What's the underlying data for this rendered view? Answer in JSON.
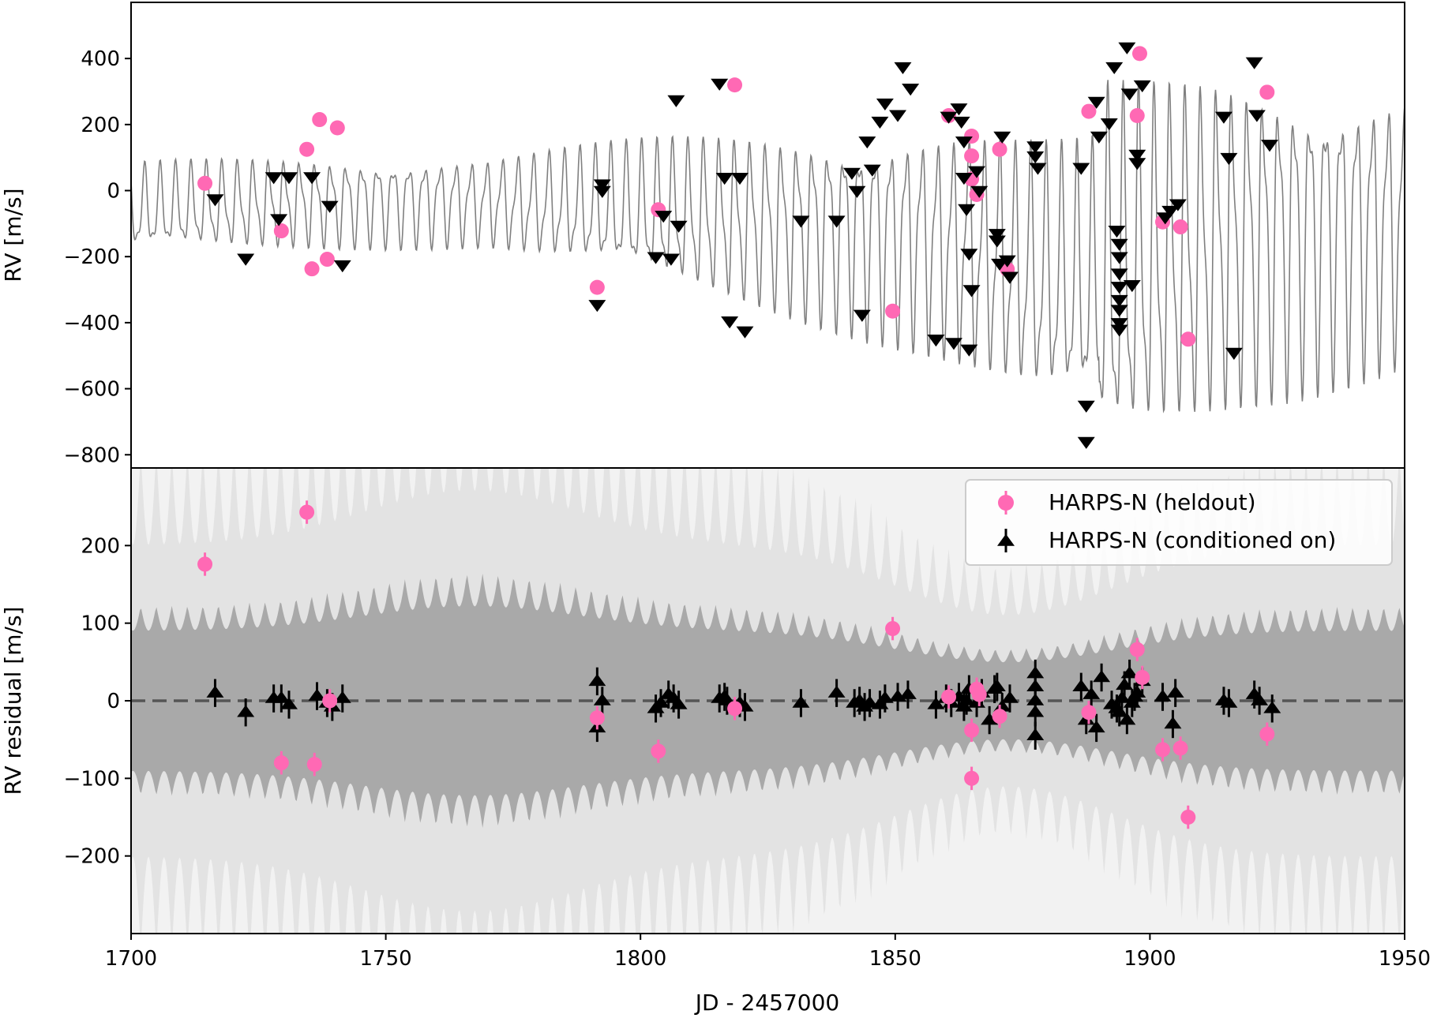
{
  "colors": {
    "heldout": "#ff69b4",
    "conditioned": "#000000",
    "model_line": "#808080",
    "band_outer": "#e3e3e3",
    "band_inner": "#a9a9a9",
    "zero_line": "#555555"
  },
  "chart_data": [
    {
      "type": "scatter",
      "panel": "top",
      "ylabel": "RV [m/s]",
      "xlim": [
        1700,
        1950
      ],
      "ylim": [
        -840,
        570
      ],
      "yticks": [
        400,
        200,
        0,
        -200,
        -400,
        -600,
        -800
      ],
      "ytick_labels": [
        "400",
        "200",
        "0",
        "−200",
        "−400",
        "−600",
        "−800"
      ],
      "model_line": {
        "description": "oscillating RV model curve",
        "short_period_days": 3.05,
        "short_amplitude_range": [
          70,
          420
        ],
        "long_trend": "slow rise then oscillation growth toward 1890, decline after"
      },
      "series": [
        {
          "name": "HARPS-N (heldout)",
          "marker": "circle",
          "points": [
            [
              1714.5,
              22
            ],
            [
              1729.5,
              -122
            ],
            [
              1734.5,
              125
            ],
            [
              1735.5,
              -237
            ],
            [
              1737,
              215
            ],
            [
              1738.5,
              -208
            ],
            [
              1740.5,
              190
            ],
            [
              1791.5,
              -293
            ],
            [
              1803.5,
              -58
            ],
            [
              1818.5,
              320
            ],
            [
              1849.5,
              -365
            ],
            [
              1860.5,
              227
            ],
            [
              1865,
              165
            ],
            [
              1865,
              105
            ],
            [
              1865,
              35
            ],
            [
              1866,
              -12
            ],
            [
              1870.5,
              125
            ],
            [
              1872,
              -238
            ],
            [
              1888,
              240
            ],
            [
              1897.5,
              227
            ],
            [
              1898,
              415
            ],
            [
              1902.5,
              -95
            ],
            [
              1906,
              -110
            ],
            [
              1907.5,
              -450
            ],
            [
              1923,
              298
            ]
          ]
        },
        {
          "name": "HARPS-N (conditioned on)",
          "marker": "triangle-down",
          "points": [
            [
              1716.5,
              -25
            ],
            [
              1722.5,
              -205
            ],
            [
              1728,
              42
            ],
            [
              1729,
              -85
            ],
            [
              1731,
              42
            ],
            [
              1735.5,
              42
            ],
            [
              1739,
              -45
            ],
            [
              1741.5,
              -225
            ],
            [
              1791.5,
              -345
            ],
            [
              1792.5,
              20
            ],
            [
              1792.5,
              0
            ],
            [
              1803,
              -200
            ],
            [
              1804.5,
              -75
            ],
            [
              1806,
              -205
            ],
            [
              1807,
              275
            ],
            [
              1807.5,
              -105
            ],
            [
              1815.5,
              325
            ],
            [
              1816.5,
              40
            ],
            [
              1817.5,
              -395
            ],
            [
              1819.5,
              40
            ],
            [
              1820.5,
              -425
            ],
            [
              1831.5,
              -90
            ],
            [
              1838.5,
              -90
            ],
            [
              1841.5,
              55
            ],
            [
              1842.5,
              0
            ],
            [
              1843.5,
              -375
            ],
            [
              1844.5,
              150
            ],
            [
              1845.5,
              65
            ],
            [
              1847,
              210
            ],
            [
              1848,
              265
            ],
            [
              1850.5,
              230
            ],
            [
              1851.5,
              375
            ],
            [
              1853,
              310
            ],
            [
              1858,
              -450
            ],
            [
              1860.5,
              225
            ],
            [
              1861.5,
              -460
            ],
            [
              1862.5,
              250
            ],
            [
              1863,
              210
            ],
            [
              1863.5,
              150
            ],
            [
              1863.5,
              40
            ],
            [
              1864,
              -55
            ],
            [
              1864.5,
              -480
            ],
            [
              1864.5,
              -190
            ],
            [
              1865,
              -300
            ],
            [
              1866,
              60
            ],
            [
              1866.5,
              0
            ],
            [
              1870,
              -130
            ],
            [
              1870,
              -150
            ],
            [
              1870.5,
              -220
            ],
            [
              1871,
              165
            ],
            [
              1872,
              -210
            ],
            [
              1872.5,
              -260
            ],
            [
              1877.5,
              135
            ],
            [
              1877.5,
              105
            ],
            [
              1878,
              70
            ],
            [
              1886.5,
              70
            ],
            [
              1887.5,
              -650
            ],
            [
              1887.5,
              -760
            ],
            [
              1889.5,
              270
            ],
            [
              1890,
              165
            ],
            [
              1892,
              205
            ],
            [
              1893,
              375
            ],
            [
              1893.5,
              -120
            ],
            [
              1894,
              -160
            ],
            [
              1894,
              -200
            ],
            [
              1894,
              -250
            ],
            [
              1894,
              -290
            ],
            [
              1894,
              -330
            ],
            [
              1894,
              -360
            ],
            [
              1894,
              -400
            ],
            [
              1894,
              -420
            ],
            [
              1895.5,
              435
            ],
            [
              1896,
              295
            ],
            [
              1896.5,
              -285
            ],
            [
              1897.5,
              110
            ],
            [
              1897.5,
              85
            ],
            [
              1898.5,
              320
            ],
            [
              1903,
              -80
            ],
            [
              1904,
              -60
            ],
            [
              1905.5,
              -40
            ],
            [
              1914.5,
              225
            ],
            [
              1915.5,
              100
            ],
            [
              1916.5,
              -490
            ],
            [
              1920.5,
              390
            ],
            [
              1921,
              230
            ],
            [
              1923.5,
              140
            ]
          ]
        }
      ]
    },
    {
      "type": "scatter",
      "panel": "bottom",
      "xlabel": "JD - 2457000",
      "ylabel": "RV residual [m/s]",
      "xlim": [
        1700,
        1950
      ],
      "ylim": [
        -300,
        300
      ],
      "xticks": [
        1700,
        1750,
        1800,
        1850,
        1900,
        1950
      ],
      "xtick_labels": [
        "1700",
        "1750",
        "1800",
        "1850",
        "1900",
        "1950"
      ],
      "yticks": [
        200,
        100,
        0,
        -100,
        -200
      ],
      "ytick_labels": [
        "200",
        "100",
        "0",
        "−100",
        "−200"
      ],
      "zero_line": 0,
      "bands": {
        "inner_base_halfwidth": 90,
        "outer_base_halfwidth": 200,
        "description": "shaded 1-sigma (dark) and 2-sigma (light) predictive intervals with rapid oscillation"
      },
      "legend": {
        "position": "top-right",
        "entries": [
          "HARPS-N (heldout)",
          "HARPS-N (conditioned on)"
        ]
      },
      "series": [
        {
          "name": "HARPS-N (heldout)",
          "marker": "circle",
          "errorbar": 15,
          "points": [
            [
              1714.5,
              176
            ],
            [
              1729.5,
              -80
            ],
            [
              1734.5,
              243
            ],
            [
              1736,
              -82
            ],
            [
              1739,
              0
            ],
            [
              1791.5,
              -22
            ],
            [
              1803.5,
              -65
            ],
            [
              1818.5,
              -10
            ],
            [
              1849.5,
              93
            ],
            [
              1860.5,
              5
            ],
            [
              1865,
              -38
            ],
            [
              1865,
              -100
            ],
            [
              1866,
              15
            ],
            [
              1866.5,
              8
            ],
            [
              1870.5,
              -20
            ],
            [
              1888,
              -15
            ],
            [
              1897.5,
              66
            ],
            [
              1898.5,
              30
            ],
            [
              1902.5,
              -63
            ],
            [
              1906,
              -61
            ],
            [
              1907.5,
              -150
            ],
            [
              1923,
              -43
            ]
          ]
        },
        {
          "name": "HARPS-N (conditioned on)",
          "marker": "triangle-up",
          "errorbar": 18,
          "points": [
            [
              1716.5,
              10
            ],
            [
              1722.5,
              -15
            ],
            [
              1728,
              3
            ],
            [
              1729.5,
              3
            ],
            [
              1731,
              -5
            ],
            [
              1736.5,
              6
            ],
            [
              1738.5,
              -3
            ],
            [
              1739.5,
              -8
            ],
            [
              1741.5,
              3
            ],
            [
              1791.5,
              -35
            ],
            [
              1791.5,
              25
            ],
            [
              1792.5,
              0
            ],
            [
              1803,
              -10
            ],
            [
              1804,
              -3
            ],
            [
              1805.5,
              8
            ],
            [
              1806.5,
              3
            ],
            [
              1807.5,
              -5
            ],
            [
              1815.5,
              3
            ],
            [
              1816.5,
              5
            ],
            [
              1817,
              0
            ],
            [
              1819.5,
              -3
            ],
            [
              1820.5,
              -8
            ],
            [
              1831.5,
              -3
            ],
            [
              1838.5,
              10
            ],
            [
              1842,
              -3
            ],
            [
              1843,
              0
            ],
            [
              1844,
              -8
            ],
            [
              1845,
              -3
            ],
            [
              1847,
              -5
            ],
            [
              1848,
              3
            ],
            [
              1850.5,
              5
            ],
            [
              1852.5,
              8
            ],
            [
              1858,
              -5
            ],
            [
              1860,
              3
            ],
            [
              1861,
              -3
            ],
            [
              1862.5,
              5
            ],
            [
              1863.5,
              -8
            ],
            [
              1864,
              0
            ],
            [
              1864.5,
              15
            ],
            [
              1866,
              -3
            ],
            [
              1867,
              10
            ],
            [
              1868.5,
              -25
            ],
            [
              1869.5,
              15
            ],
            [
              1870,
              18
            ],
            [
              1871,
              -8
            ],
            [
              1872.5,
              3
            ],
            [
              1877.5,
              35
            ],
            [
              1877.5,
              18
            ],
            [
              1877.5,
              0
            ],
            [
              1877.5,
              -15
            ],
            [
              1877.5,
              -45
            ],
            [
              1886.5,
              18
            ],
            [
              1887.5,
              -25
            ],
            [
              1888.5,
              8
            ],
            [
              1889.5,
              -35
            ],
            [
              1890.5,
              30
            ],
            [
              1892.5,
              -5
            ],
            [
              1893.5,
              -10
            ],
            [
              1894,
              -15
            ],
            [
              1894.5,
              3
            ],
            [
              1895,
              20
            ],
            [
              1895.5,
              -25
            ],
            [
              1896,
              35
            ],
            [
              1896.5,
              -3
            ],
            [
              1897,
              5
            ],
            [
              1897.5,
              10
            ],
            [
              1898.5,
              25
            ],
            [
              1902.5,
              5
            ],
            [
              1904.5,
              -30
            ],
            [
              1905,
              10
            ],
            [
              1914.5,
              0
            ],
            [
              1915.5,
              -3
            ],
            [
              1920.5,
              8
            ],
            [
              1921.5,
              0
            ],
            [
              1924,
              -10
            ]
          ]
        }
      ]
    }
  ]
}
